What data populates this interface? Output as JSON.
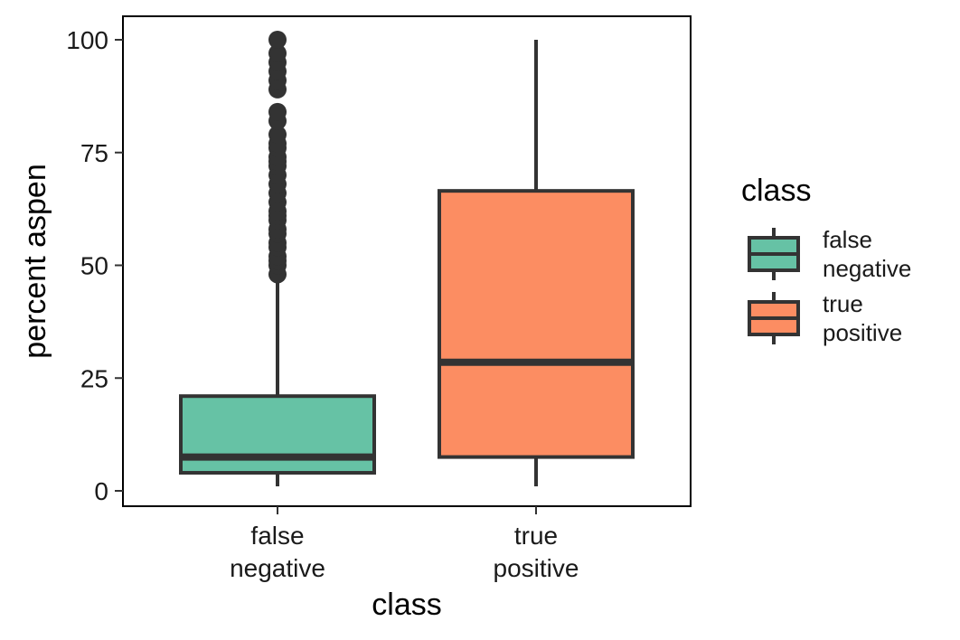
{
  "chart_data": {
    "type": "box",
    "xlabel": "class",
    "ylabel": "percent aspen",
    "ylim": [
      -3,
      105
    ],
    "yticks": [
      0,
      25,
      50,
      75,
      100
    ],
    "categories": [
      "false\nnegative",
      "true\npositive"
    ],
    "boxes": [
      {
        "category": "false\nnegative",
        "fill": "#66c2a5",
        "whisker_low": 1,
        "q1": 4,
        "median": 7.5,
        "q3": 21,
        "whisker_high": 48,
        "outliers": [
          48,
          50,
          51,
          52,
          54,
          55,
          57,
          58,
          60,
          61,
          62,
          64,
          66,
          68,
          70,
          72,
          73,
          74,
          76,
          77,
          79,
          82,
          84,
          89,
          91,
          93,
          95,
          97,
          100
        ]
      },
      {
        "category": "true\npositive",
        "fill": "#fc8d62",
        "whisker_low": 1,
        "q1": 7.5,
        "median": 28.5,
        "q3": 66.5,
        "whisker_high": 100,
        "outliers": []
      }
    ],
    "legend": {
      "title": "class",
      "position": "right",
      "entries": [
        "false\nnegative",
        "true\npositive"
      ]
    },
    "grid": false
  },
  "colors": {
    "line": "#333333",
    "panel_border": "#000000"
  }
}
